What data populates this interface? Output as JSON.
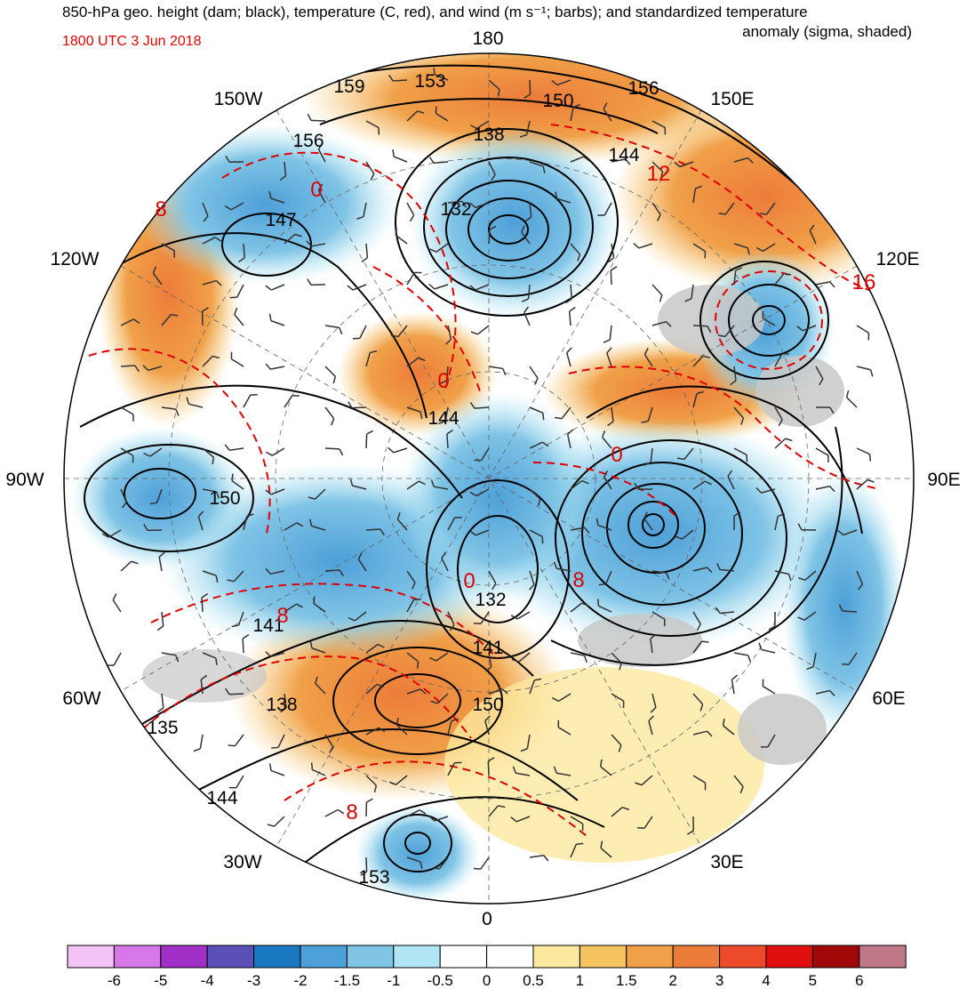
{
  "title": {
    "line1": "850-hPa geo. height (dam; black), temperature (C, red), and wind (m s⁻¹; barbs); and standardized temperature",
    "line2": "anomaly (sigma, shaded)"
  },
  "date_label": "1800 UTC 3 Jun 2018",
  "longitude_labels": [
    "180",
    "150E",
    "120E",
    "90E",
    "60E",
    "30E",
    "0",
    "30W",
    "60W",
    "90W",
    "120W",
    "150W"
  ],
  "height_contour_labels": [
    "159",
    "153",
    "150",
    "156",
    "138",
    "144",
    "156",
    "147",
    "132",
    "144",
    "150",
    "141",
    "132",
    "141",
    "138",
    "150",
    "135",
    "144",
    "153"
  ],
  "temperature_contour_labels": [
    "0",
    "8",
    "12",
    "16",
    "0",
    "0",
    "8",
    "8",
    "0",
    "8"
  ],
  "colorbar": {
    "tick_labels": [
      "-6",
      "-5",
      "-4",
      "-3",
      "-2",
      "-1.5",
      "-1",
      "-0.5",
      "0",
      "0.5",
      "1",
      "1.5",
      "2",
      "3",
      "4",
      "5",
      "6"
    ],
    "colors": [
      "#f5c2f5",
      "#d878e8",
      "#a030c8",
      "#5a50b8",
      "#1a78c0",
      "#4ea0d8",
      "#80c4e6",
      "#b0e6f4",
      "#ffffff",
      "#ffffff",
      "#fde8a0",
      "#f5c460",
      "#f0a048",
      "#ec7c3a",
      "#ec4a2a",
      "#e01010",
      "#a00808",
      "#c07888"
    ]
  },
  "colors": {
    "height_contour": "#000000",
    "temperature_contour": "#e00000",
    "land_mask": "#c8c8c8"
  }
}
